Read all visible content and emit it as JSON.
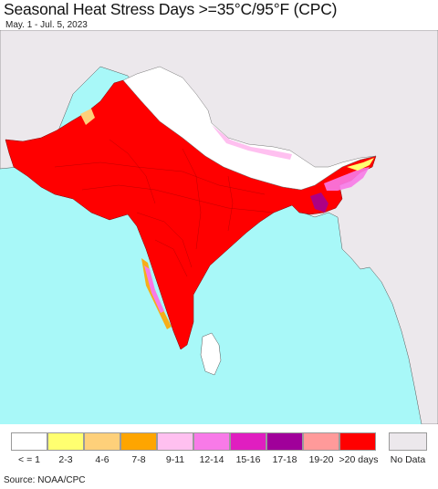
{
  "title": "Seasonal Heat Stress Days >=35°C/95°F (CPC)",
  "subtitle": "May. 1 - Jul. 5, 2023",
  "source": "Source: NOAA/CPC",
  "colors": {
    "ocean": "#a8f8f8",
    "foreign_land": "#ece8ec",
    "heat_main": "#ff0000",
    "cool_region": "#ffffff",
    "no_data": "#ece8ec"
  },
  "legend": [
    {
      "label": "< = 1",
      "color": "#ffffff"
    },
    {
      "label": "2-3",
      "color": "#ffff70"
    },
    {
      "label": "4-6",
      "color": "#fed07a"
    },
    {
      "label": "7-8",
      "color": "#fea500"
    },
    {
      "label": "9-11",
      "color": "#ffc0f0"
    },
    {
      "label": "12-14",
      "color": "#f87ae8"
    },
    {
      "label": "15-16",
      "color": "#e01ec0"
    },
    {
      "label": "17-18",
      "color": "#a0009a"
    },
    {
      "label": "19-20",
      "color": "#ff9a9a"
    },
    {
      "label": ">20 days",
      "color": "#ff0000"
    }
  ],
  "legend_nodata": {
    "label": "No Data",
    "color": "#ece8ec"
  }
}
